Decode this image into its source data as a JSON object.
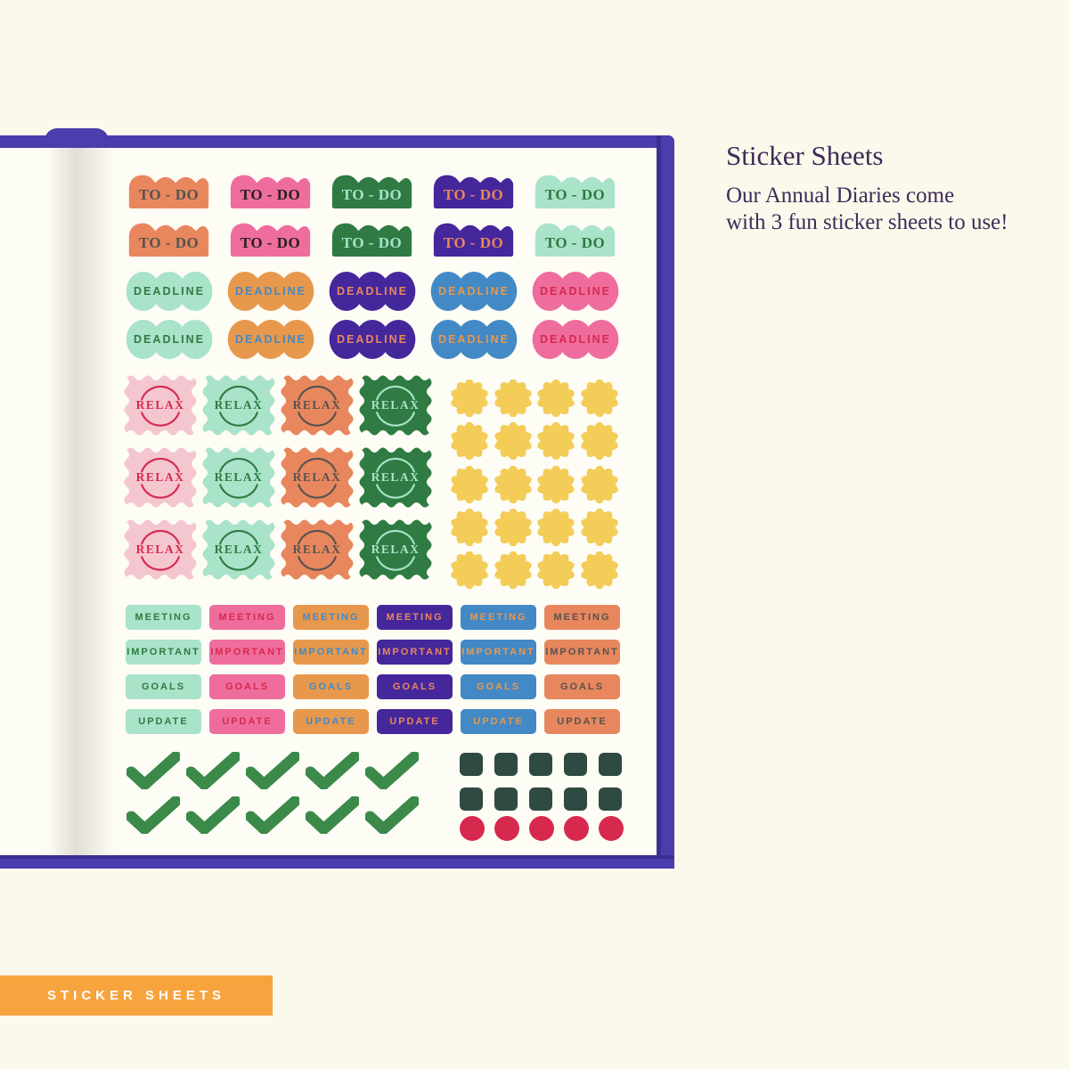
{
  "colors": {
    "salmon": "#E8875E",
    "pink": "#EF6D9D",
    "green": "#2F7B43",
    "purple": "#45279C",
    "mint": "#A9E3C9",
    "orange": "#E8984C",
    "blue": "#4289C6",
    "lightpink": "#F4C6D0",
    "yellow": "#F3CD58",
    "darkteal": "#2E4A41",
    "crimson": "#D7294E",
    "checkgreen": "#3B8A49",
    "darkgray": "#55534F",
    "nearblack": "#24211E",
    "cover": "#4B3DAD",
    "banner": "#F7A33E",
    "heading": "#3E2A58"
  },
  "panel": {
    "title": "Sticker Sheets",
    "desc_line1": "Our Annual Diaries come",
    "desc_line2": "with 3 fun sticker sheets to use!"
  },
  "banner": {
    "label": "STICKER SHEETS"
  },
  "sheet": {
    "todo": {
      "label": "TO - DO",
      "rows": 2,
      "variants": [
        {
          "bg": "salmon",
          "fg": "darkgray"
        },
        {
          "bg": "pink",
          "fg": "nearblack"
        },
        {
          "bg": "green",
          "fg": "mint"
        },
        {
          "bg": "purple",
          "fg": "salmon"
        },
        {
          "bg": "mint",
          "fg": "green"
        }
      ]
    },
    "deadline": {
      "label": "DEADLINE",
      "rows": 2,
      "variants": [
        {
          "bg": "mint",
          "fg": "green"
        },
        {
          "bg": "orange",
          "fg": "blue"
        },
        {
          "bg": "purple",
          "fg": "salmon"
        },
        {
          "bg": "blue",
          "fg": "orange"
        },
        {
          "bg": "pink",
          "fg": "crimson"
        }
      ]
    },
    "relax": {
      "label": "RELAX",
      "rows": 3,
      "variants": [
        {
          "bg": "lightpink",
          "fg": "crimson"
        },
        {
          "bg": "mint",
          "fg": "green"
        },
        {
          "bg": "salmon",
          "fg": "darkgray"
        },
        {
          "bg": "green",
          "fg": "mint"
        }
      ]
    },
    "seals": {
      "rows": 5,
      "cols": 4,
      "color": "yellow"
    },
    "tags": {
      "labels": [
        "MEETING",
        "IMPORTANT",
        "GOALS",
        "UPDATE"
      ],
      "variants": [
        {
          "bg": "mint",
          "fg": "green"
        },
        {
          "bg": "pink",
          "fg": "crimson"
        },
        {
          "bg": "orange",
          "fg": "blue"
        },
        {
          "bg": "purple",
          "fg": "salmon"
        },
        {
          "bg": "blue",
          "fg": "orange"
        },
        {
          "bg": "salmon",
          "fg": "darkgray"
        }
      ]
    },
    "checks": {
      "rows": 2,
      "cols": 5,
      "color": "checkgreen"
    },
    "squares": {
      "rows": 2,
      "cols": 5,
      "color": "darkteal"
    },
    "dots": {
      "rows": 1,
      "cols": 5,
      "color": "crimson"
    }
  }
}
